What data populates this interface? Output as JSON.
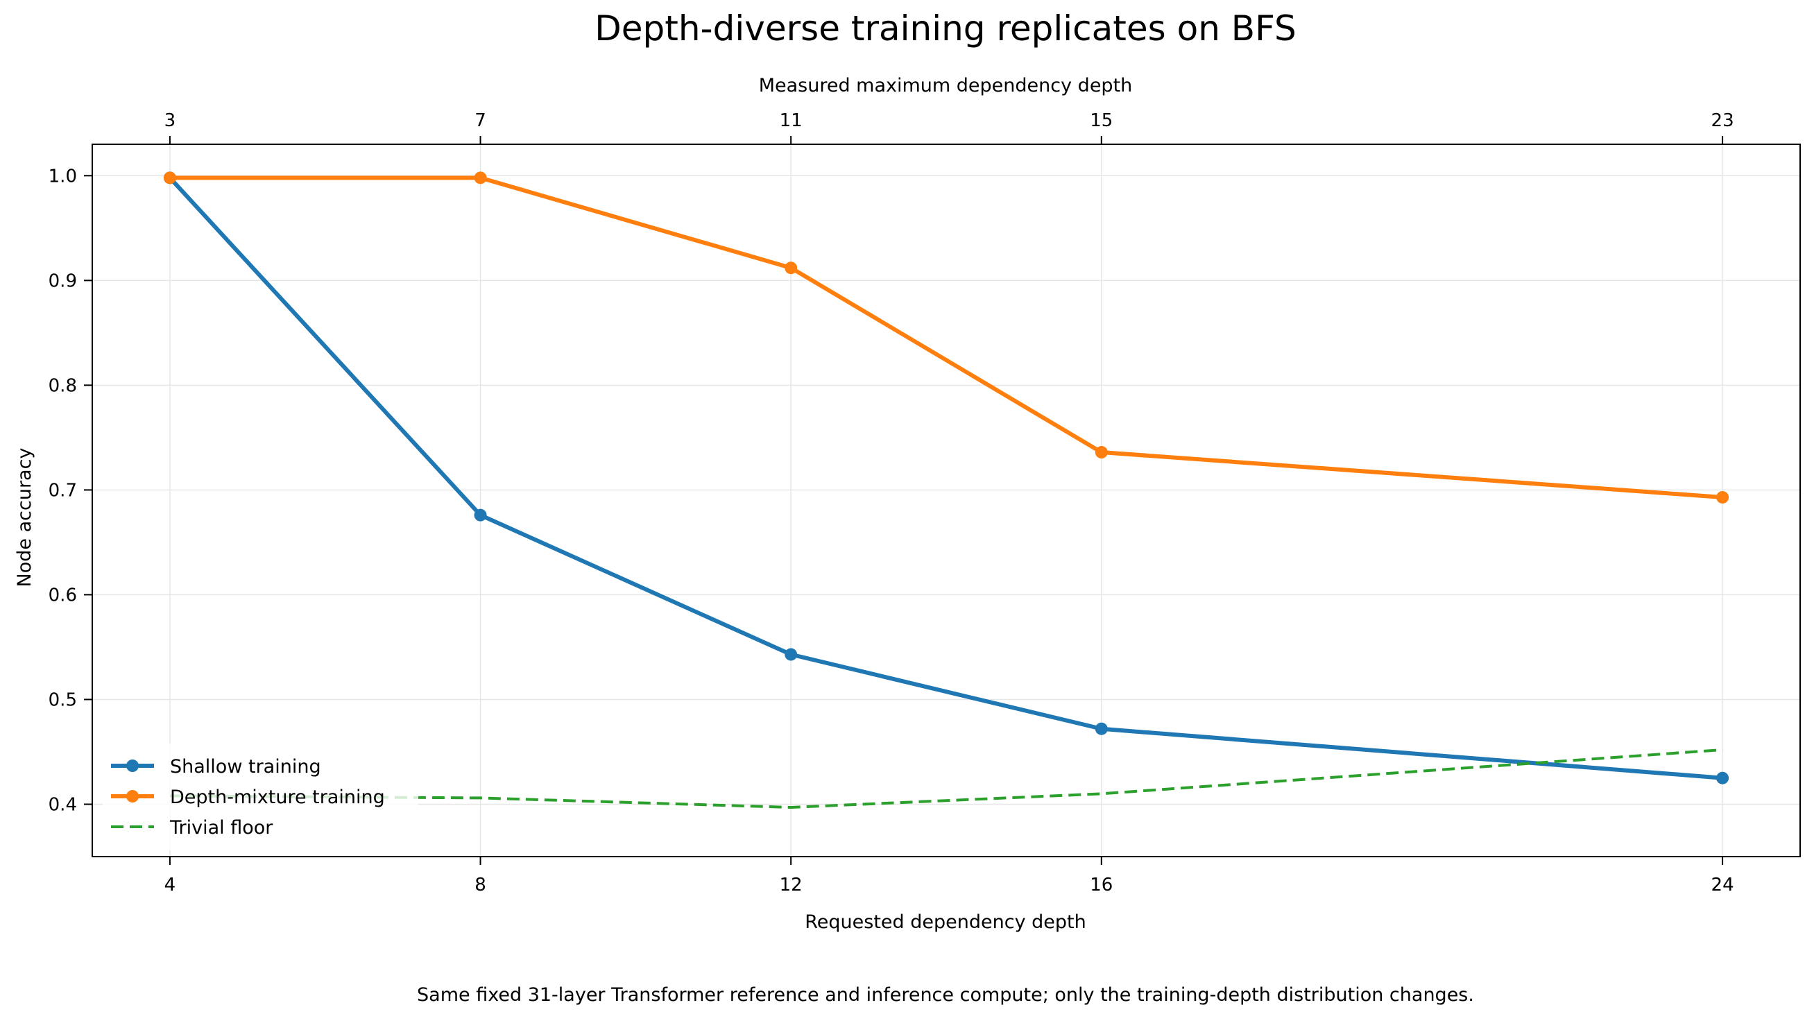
{
  "chart_data": {
    "type": "line",
    "title": "Depth-diverse training replicates on BFS",
    "xlabel": "Requested dependency depth",
    "ylabel": "Node accuracy",
    "top_xlabel": "Measured maximum dependency depth",
    "footnote": "Same fixed 31-layer Transformer reference and inference compute; only the training-depth distribution changes.",
    "x": [
      4,
      8,
      12,
      16,
      24
    ],
    "x_ticks": [
      "4",
      "8",
      "12",
      "16",
      "24"
    ],
    "top_x_ticks": [
      "3",
      "7",
      "11",
      "15",
      "23"
    ],
    "xlim": [
      3,
      25
    ],
    "ylim": [
      0.35,
      1.03
    ],
    "y_ticks": [
      0.4,
      0.5,
      0.6,
      0.7,
      0.8,
      0.9,
      1.0
    ],
    "y_tick_labels": [
      "0.4",
      "0.5",
      "0.6",
      "0.7",
      "0.8",
      "0.9",
      "1.0"
    ],
    "grid": true,
    "legend_position": "lower-left",
    "series": [
      {
        "name": "Shallow training",
        "values": [
          0.998,
          0.676,
          0.543,
          0.472,
          0.425
        ],
        "color": "#1f77b4",
        "style": "solid",
        "marker": true
      },
      {
        "name": "Depth-mixture training",
        "values": [
          0.998,
          0.998,
          0.912,
          0.736,
          0.693
        ],
        "color": "#ff7f0e",
        "style": "solid",
        "marker": true
      },
      {
        "name": "Trivial floor",
        "values": [
          0.408,
          0.406,
          0.397,
          0.41,
          0.452
        ],
        "color": "#2ca02c",
        "style": "dashed",
        "marker": false
      }
    ]
  }
}
